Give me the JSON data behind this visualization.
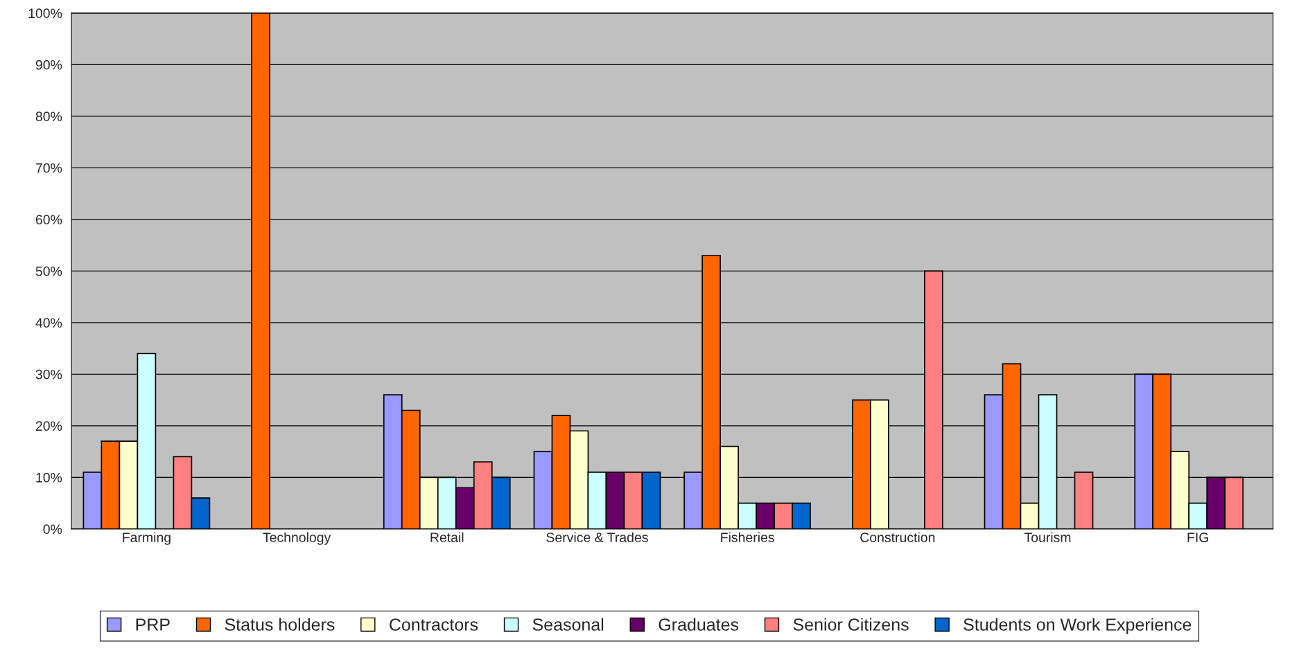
{
  "chart_data": {
    "type": "bar",
    "categories": [
      "Farming",
      "Technology",
      "Retail",
      "Service & Trades",
      "Fisheries",
      "Construction",
      "Tourism",
      "FIG"
    ],
    "series": [
      {
        "name": "PRP",
        "color": "#9999ff",
        "values": [
          11,
          null,
          26,
          15,
          11,
          null,
          26,
          30
        ]
      },
      {
        "name": "Status holders",
        "color": "#ff6600",
        "values": [
          17,
          100,
          23,
          22,
          53,
          25,
          32,
          30
        ]
      },
      {
        "name": "Contractors",
        "color": "#ffffcc",
        "values": [
          17,
          null,
          10,
          19,
          16,
          25,
          5,
          15
        ]
      },
      {
        "name": "Seasonal",
        "color": "#ccffff",
        "values": [
          34,
          null,
          10,
          11,
          5,
          null,
          26,
          5
        ]
      },
      {
        "name": "Graduates",
        "color": "#660066",
        "values": [
          null,
          null,
          8,
          11,
          5,
          null,
          null,
          10
        ]
      },
      {
        "name": "Senior Citizens",
        "color": "#ff8080",
        "values": [
          14,
          null,
          13,
          11,
          5,
          50,
          11,
          10
        ]
      },
      {
        "name": "Students on Work Experience",
        "color": "#0066cc",
        "values": [
          6,
          null,
          10,
          11,
          5,
          null,
          null,
          null
        ]
      }
    ],
    "ylim": [
      0,
      100
    ],
    "yticks": [
      {
        "value": 0,
        "label": "0%"
      },
      {
        "value": 10,
        "label": "10%"
      },
      {
        "value": 20,
        "label": "20%"
      },
      {
        "value": 30,
        "label": "30%"
      },
      {
        "value": 40,
        "label": "40%"
      },
      {
        "value": 50,
        "label": "50%"
      },
      {
        "value": 60,
        "label": "60%"
      },
      {
        "value": 70,
        "label": "70%"
      },
      {
        "value": 80,
        "label": "80%"
      },
      {
        "value": 90,
        "label": "90%"
      },
      {
        "value": 100,
        "label": "100%"
      }
    ],
    "grid": "y",
    "legend": "bottom"
  }
}
